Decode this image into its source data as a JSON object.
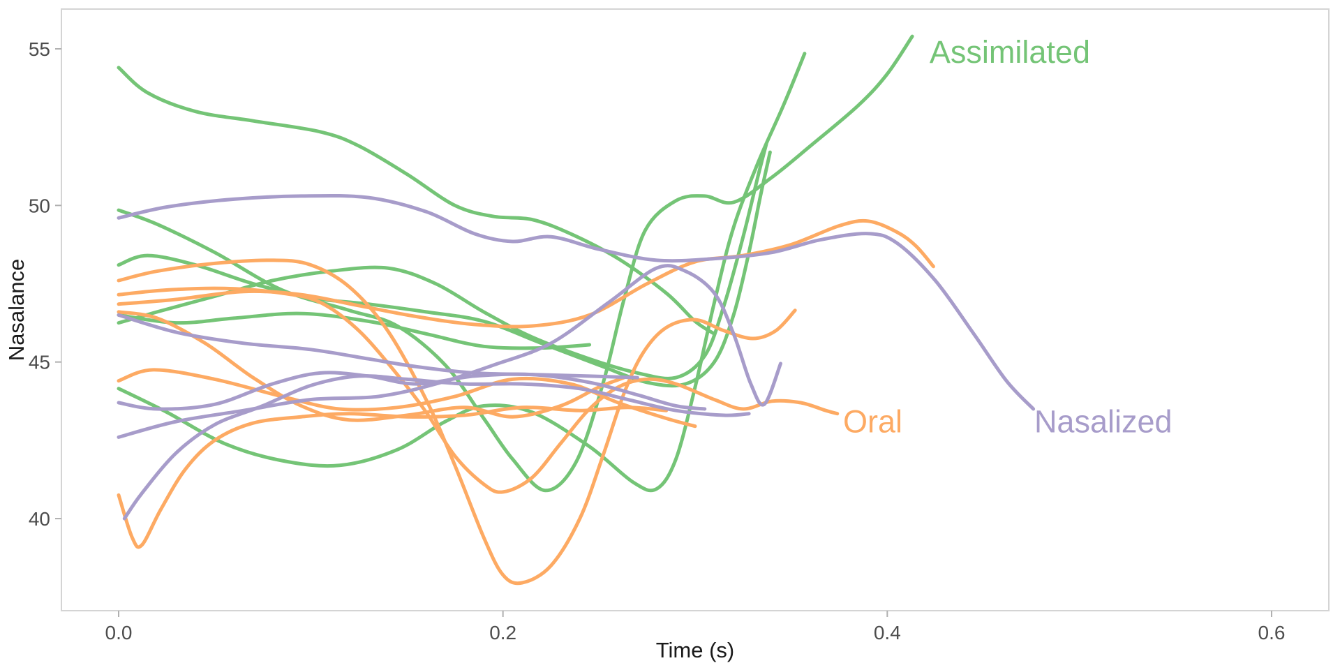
{
  "chart_data": {
    "type": "line",
    "title": "",
    "xlabel": "Time (s)",
    "ylabel": "Nasalance",
    "x_tick_labels": [
      "0.0",
      "0.2",
      "0.4",
      "0.6"
    ],
    "x_tick_values": [
      0.0,
      0.2,
      0.4,
      0.6
    ],
    "y_tick_labels": [
      "55",
      "50",
      "45",
      "40"
    ],
    "y_tick_values": [
      55,
      50,
      45,
      40
    ],
    "xlim": [
      -0.0298,
      0.6298
    ],
    "ylim": [
      37.05,
      56.27
    ],
    "grid": false,
    "legend_position": "direct-labels-on-plot",
    "panel_border_color": "#d4d4d4",
    "tick_color": "#b0b0b0",
    "groups": {
      "Assimilated": {
        "color": "#74c476"
      },
      "Oral": {
        "color": "#fdaa63"
      },
      "Nasalized": {
        "color": "#a79cca"
      }
    },
    "annotations": [
      {
        "text": "Assimilated",
        "group": "Assimilated",
        "t": 0.422,
        "v": 54.55
      },
      {
        "text": "Oral",
        "group": "Oral",
        "t": 0.377,
        "v": 42.75
      },
      {
        "text": "Nasalized",
        "group": "Nasalized",
        "t": 0.4765,
        "v": 42.75
      }
    ],
    "series": [
      {
        "group": "Assimilated",
        "points": [
          [
            0,
            54.4
          ],
          [
            0.015,
            53.6
          ],
          [
            0.04,
            53.0
          ],
          [
            0.07,
            52.7
          ],
          [
            0.105,
            52.35
          ],
          [
            0.125,
            51.9
          ],
          [
            0.15,
            51.0
          ],
          [
            0.175,
            50.0
          ],
          [
            0.195,
            49.65
          ],
          [
            0.215,
            49.55
          ],
          [
            0.235,
            49.1
          ],
          [
            0.26,
            48.3
          ],
          [
            0.285,
            47.2
          ],
          [
            0.3,
            46.3
          ],
          [
            0.31,
            45.9
          ]
        ]
      },
      {
        "group": "Assimilated",
        "points": [
          [
            0,
            49.85
          ],
          [
            0.02,
            49.4
          ],
          [
            0.05,
            48.5
          ],
          [
            0.085,
            47.3
          ],
          [
            0.12,
            46.65
          ],
          [
            0.145,
            46.15
          ],
          [
            0.17,
            44.9
          ],
          [
            0.19,
            43.2
          ],
          [
            0.205,
            41.9
          ],
          [
            0.222,
            40.9
          ],
          [
            0.238,
            41.8
          ],
          [
            0.252,
            44.3
          ],
          [
            0.263,
            47.0
          ],
          [
            0.274,
            49.2
          ],
          [
            0.29,
            50.15
          ],
          [
            0.305,
            50.3
          ],
          [
            0.32,
            50.1
          ],
          [
            0.34,
            50.9
          ],
          [
            0.36,
            51.9
          ],
          [
            0.385,
            53.2
          ],
          [
            0.4,
            54.2
          ],
          [
            0.413,
            55.4
          ]
        ]
      },
      {
        "group": "Assimilated",
        "points": [
          [
            0,
            44.15
          ],
          [
            0.025,
            43.4
          ],
          [
            0.055,
            42.4
          ],
          [
            0.085,
            41.85
          ],
          [
            0.115,
            41.7
          ],
          [
            0.145,
            42.2
          ],
          [
            0.17,
            43.1
          ],
          [
            0.19,
            43.6
          ],
          [
            0.215,
            43.4
          ],
          [
            0.245,
            42.3
          ],
          [
            0.268,
            41.15
          ],
          [
            0.28,
            40.95
          ],
          [
            0.29,
            41.9
          ],
          [
            0.3,
            44.2
          ],
          [
            0.31,
            46.9
          ],
          [
            0.32,
            49.3
          ],
          [
            0.333,
            51.4
          ],
          [
            0.346,
            53.2
          ],
          [
            0.357,
            54.85
          ]
        ]
      },
      {
        "group": "Assimilated",
        "points": [
          [
            0,
            46.25
          ],
          [
            0.02,
            46.6
          ],
          [
            0.05,
            47.1
          ],
          [
            0.08,
            47.6
          ],
          [
            0.11,
            47.9
          ],
          [
            0.14,
            48.0
          ],
          [
            0.165,
            47.5
          ],
          [
            0.19,
            46.6
          ],
          [
            0.215,
            45.8
          ],
          [
            0.245,
            45.1
          ],
          [
            0.27,
            44.65
          ],
          [
            0.29,
            44.5
          ],
          [
            0.305,
            45.2
          ],
          [
            0.315,
            46.8
          ],
          [
            0.325,
            49.0
          ],
          [
            0.333,
            51.0
          ],
          [
            0.337,
            51.95
          ]
        ]
      },
      {
        "group": "Assimilated",
        "points": [
          [
            0,
            48.1
          ],
          [
            0.015,
            48.4
          ],
          [
            0.04,
            48.1
          ],
          [
            0.07,
            47.5
          ],
          [
            0.1,
            47.05
          ],
          [
            0.13,
            46.85
          ],
          [
            0.16,
            46.6
          ],
          [
            0.19,
            46.3
          ],
          [
            0.22,
            45.6
          ],
          [
            0.25,
            44.9
          ],
          [
            0.275,
            44.35
          ],
          [
            0.295,
            44.3
          ],
          [
            0.31,
            45.0
          ],
          [
            0.32,
            46.5
          ],
          [
            0.328,
            48.5
          ],
          [
            0.334,
            50.3
          ],
          [
            0.339,
            51.7
          ]
        ]
      },
      {
        "group": "Assimilated",
        "points": [
          [
            0,
            46.5
          ],
          [
            0.03,
            46.25
          ],
          [
            0.06,
            46.4
          ],
          [
            0.095,
            46.55
          ],
          [
            0.13,
            46.3
          ],
          [
            0.16,
            45.9
          ],
          [
            0.19,
            45.5
          ],
          [
            0.22,
            45.45
          ],
          [
            0.245,
            45.55
          ]
        ]
      },
      {
        "group": "Oral",
        "points": [
          [
            0,
            47.6
          ],
          [
            0.02,
            47.9
          ],
          [
            0.05,
            48.15
          ],
          [
            0.08,
            48.25
          ],
          [
            0.1,
            48.1
          ],
          [
            0.12,
            47.4
          ],
          [
            0.14,
            46.0
          ],
          [
            0.16,
            43.8
          ],
          [
            0.175,
            41.7
          ],
          [
            0.19,
            39.4
          ],
          [
            0.2,
            38.2
          ],
          [
            0.21,
            37.95
          ],
          [
            0.225,
            38.5
          ],
          [
            0.24,
            40.0
          ],
          [
            0.252,
            42.0
          ],
          [
            0.263,
            44.0
          ],
          [
            0.273,
            45.3
          ],
          [
            0.285,
            46.1
          ],
          [
            0.3,
            46.35
          ],
          [
            0.315,
            46.0
          ],
          [
            0.33,
            45.75
          ],
          [
            0.342,
            46.0
          ],
          [
            0.352,
            46.65
          ]
        ]
      },
      {
        "group": "Oral",
        "points": [
          [
            0,
            47.15
          ],
          [
            0.025,
            47.3
          ],
          [
            0.055,
            47.35
          ],
          [
            0.085,
            47.2
          ],
          [
            0.105,
            46.9
          ],
          [
            0.125,
            46.0
          ],
          [
            0.145,
            44.6
          ],
          [
            0.16,
            43.4
          ],
          [
            0.175,
            42.0
          ],
          [
            0.19,
            41.1
          ],
          [
            0.2,
            40.85
          ],
          [
            0.215,
            41.3
          ],
          [
            0.23,
            42.4
          ],
          [
            0.245,
            43.5
          ],
          [
            0.26,
            44.2
          ],
          [
            0.275,
            44.45
          ],
          [
            0.29,
            44.3
          ],
          [
            0.31,
            43.8
          ],
          [
            0.325,
            43.5
          ],
          [
            0.34,
            43.75
          ],
          [
            0.355,
            43.7
          ],
          [
            0.368,
            43.45
          ],
          [
            0.374,
            43.35
          ]
        ]
      },
      {
        "group": "Oral",
        "points": [
          [
            0,
            46.85
          ],
          [
            0.03,
            47.0
          ],
          [
            0.065,
            47.25
          ],
          [
            0.095,
            47.15
          ],
          [
            0.125,
            46.8
          ],
          [
            0.155,
            46.45
          ],
          [
            0.185,
            46.2
          ],
          [
            0.215,
            46.15
          ],
          [
            0.245,
            46.5
          ],
          [
            0.275,
            47.5
          ],
          [
            0.3,
            48.2
          ],
          [
            0.325,
            48.4
          ],
          [
            0.35,
            48.75
          ],
          [
            0.375,
            49.35
          ],
          [
            0.39,
            49.5
          ],
          [
            0.405,
            49.15
          ],
          [
            0.415,
            48.7
          ],
          [
            0.424,
            48.05
          ]
        ]
      },
      {
        "group": "Oral",
        "points": [
          [
            0,
            46.6
          ],
          [
            0.02,
            46.4
          ],
          [
            0.045,
            45.6
          ],
          [
            0.07,
            44.5
          ],
          [
            0.095,
            43.6
          ],
          [
            0.12,
            43.15
          ],
          [
            0.15,
            43.3
          ],
          [
            0.18,
            43.55
          ],
          [
            0.205,
            43.25
          ],
          [
            0.23,
            43.6
          ],
          [
            0.25,
            44.2
          ],
          [
            0.263,
            44.5
          ]
        ]
      },
      {
        "group": "Oral",
        "points": [
          [
            0,
            44.4
          ],
          [
            0.018,
            44.75
          ],
          [
            0.05,
            44.45
          ],
          [
            0.085,
            43.9
          ],
          [
            0.115,
            43.5
          ],
          [
            0.145,
            43.55
          ],
          [
            0.175,
            43.9
          ],
          [
            0.205,
            44.45
          ],
          [
            0.235,
            44.3
          ],
          [
            0.26,
            43.7
          ],
          [
            0.285,
            43.2
          ],
          [
            0.3,
            42.95
          ]
        ]
      },
      {
        "group": "Oral",
        "points": [
          [
            0,
            40.75
          ],
          [
            0.007,
            39.4
          ],
          [
            0.012,
            39.15
          ],
          [
            0.022,
            40.3
          ],
          [
            0.035,
            41.6
          ],
          [
            0.05,
            42.5
          ],
          [
            0.07,
            43.05
          ],
          [
            0.095,
            43.25
          ],
          [
            0.12,
            43.35
          ],
          [
            0.15,
            43.25
          ],
          [
            0.18,
            43.3
          ],
          [
            0.21,
            43.55
          ],
          [
            0.24,
            43.45
          ],
          [
            0.265,
            43.55
          ],
          [
            0.285,
            43.45
          ]
        ]
      },
      {
        "group": "Nasalized",
        "points": [
          [
            0,
            49.6
          ],
          [
            0.025,
            49.95
          ],
          [
            0.06,
            50.2
          ],
          [
            0.095,
            50.3
          ],
          [
            0.13,
            50.25
          ],
          [
            0.16,
            49.8
          ],
          [
            0.185,
            49.1
          ],
          [
            0.205,
            48.85
          ],
          [
            0.225,
            49.0
          ],
          [
            0.25,
            48.6
          ],
          [
            0.28,
            48.25
          ],
          [
            0.31,
            48.3
          ],
          [
            0.34,
            48.5
          ],
          [
            0.365,
            48.9
          ],
          [
            0.39,
            49.1
          ],
          [
            0.405,
            48.8
          ],
          [
            0.425,
            47.6
          ],
          [
            0.445,
            45.9
          ],
          [
            0.462,
            44.4
          ],
          [
            0.476,
            43.5
          ]
        ]
      },
      {
        "group": "Nasalized",
        "points": [
          [
            0,
            46.5
          ],
          [
            0.03,
            45.95
          ],
          [
            0.065,
            45.6
          ],
          [
            0.1,
            45.4
          ],
          [
            0.13,
            45.1
          ],
          [
            0.155,
            44.85
          ],
          [
            0.185,
            44.65
          ],
          [
            0.215,
            44.6
          ],
          [
            0.245,
            44.55
          ],
          [
            0.27,
            44.5
          ]
        ]
      },
      {
        "group": "Nasalized",
        "points": [
          [
            0,
            43.7
          ],
          [
            0.02,
            43.5
          ],
          [
            0.05,
            43.65
          ],
          [
            0.08,
            44.3
          ],
          [
            0.105,
            44.65
          ],
          [
            0.13,
            44.55
          ],
          [
            0.155,
            44.3
          ],
          [
            0.185,
            44.55
          ],
          [
            0.215,
            44.6
          ],
          [
            0.245,
            44.35
          ],
          [
            0.27,
            43.95
          ],
          [
            0.29,
            43.6
          ],
          [
            0.305,
            43.5
          ]
        ]
      },
      {
        "group": "Nasalized",
        "points": [
          [
            0,
            42.6
          ],
          [
            0.03,
            43.1
          ],
          [
            0.065,
            43.45
          ],
          [
            0.1,
            43.8
          ],
          [
            0.135,
            43.9
          ],
          [
            0.165,
            44.3
          ],
          [
            0.195,
            44.9
          ],
          [
            0.225,
            45.6
          ],
          [
            0.255,
            46.9
          ],
          [
            0.28,
            48.0
          ],
          [
            0.295,
            47.9
          ],
          [
            0.31,
            47.2
          ],
          [
            0.32,
            45.9
          ],
          [
            0.329,
            44.3
          ],
          [
            0.336,
            43.65
          ],
          [
            0.3445,
            44.95
          ]
        ]
      },
      {
        "group": "Nasalized",
        "points": [
          [
            0.003,
            40.0
          ],
          [
            0.012,
            40.8
          ],
          [
            0.03,
            42.1
          ],
          [
            0.05,
            43.0
          ],
          [
            0.075,
            43.6
          ],
          [
            0.1,
            44.25
          ],
          [
            0.125,
            44.55
          ],
          [
            0.15,
            44.45
          ],
          [
            0.18,
            44.3
          ],
          [
            0.21,
            44.3
          ],
          [
            0.24,
            44.15
          ],
          [
            0.265,
            43.8
          ],
          [
            0.29,
            43.45
          ],
          [
            0.315,
            43.3
          ],
          [
            0.328,
            43.35
          ]
        ]
      }
    ]
  }
}
